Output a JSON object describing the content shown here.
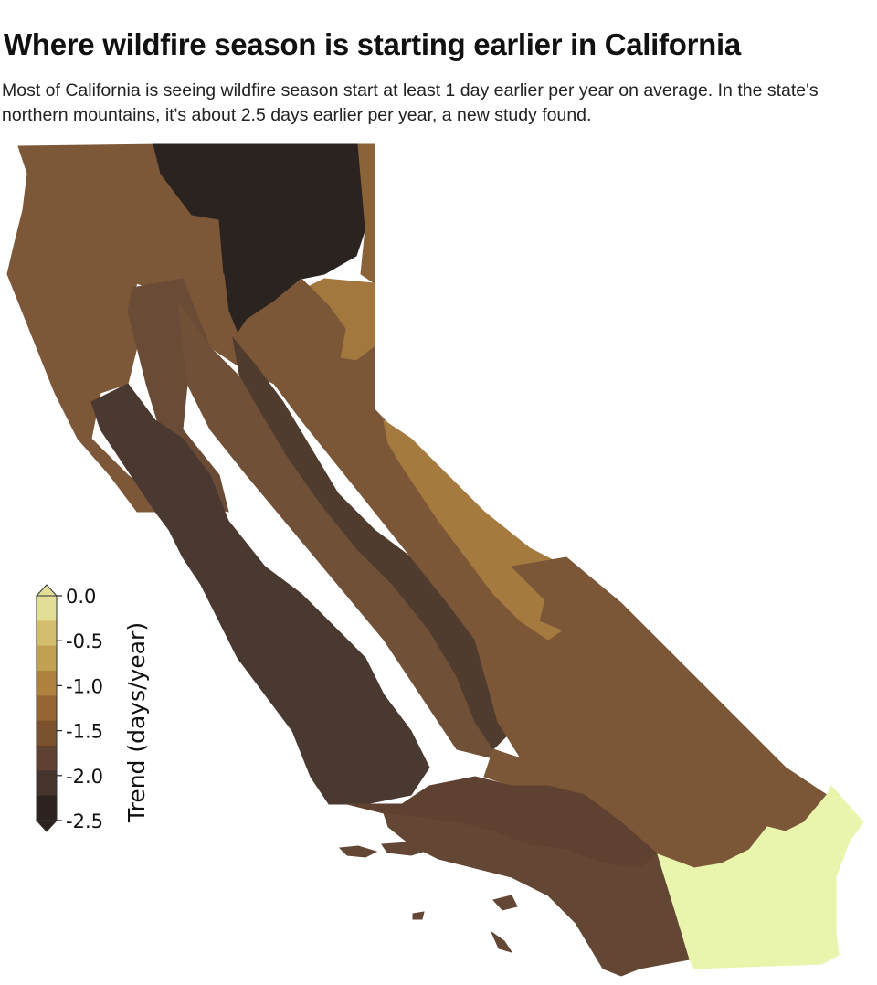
{
  "header": {
    "title": "Where wildfire season is starting earlier in California",
    "subtitle": "Most of California is seeing wildfire season start at least 1 day earlier per year on average. In the state's northern mountains, it's about 2.5 days earlier per year, a new study found."
  },
  "legend": {
    "title": "Trend (days/year)",
    "ticks": [
      "0.0",
      "-0.5",
      "-1.0",
      "-1.5",
      "-2.0",
      "-2.5"
    ],
    "colors": [
      "#e2de98",
      "#d2be6e",
      "#c2a052",
      "#ad823f",
      "#946634",
      "#7a502d",
      "#5e4130",
      "#45342c",
      "#2c231f"
    ],
    "extend": "both",
    "orientation": "vertical",
    "placement": "left"
  },
  "map": {
    "regions": [
      {
        "name": "north-coast",
        "color": "#7d5838"
      },
      {
        "name": "northeast-mountains",
        "color": "#2a2320"
      },
      {
        "name": "modoc-strip",
        "color": "#8a6338"
      },
      {
        "name": "lassen-patch",
        "color": "#a2783e"
      },
      {
        "name": "klamath-inland",
        "color": "#6a4c36"
      },
      {
        "name": "sacramento-valley",
        "color": "#7b5738"
      },
      {
        "name": "sierra-foothills",
        "color": "#705036"
      },
      {
        "name": "sierra-crest",
        "color": "#4f3c2f"
      },
      {
        "name": "sierra-east",
        "color": "#7b5738"
      },
      {
        "name": "owens-patch",
        "color": "#a57a3f"
      },
      {
        "name": "central-coast",
        "color": "#4a3930"
      },
      {
        "name": "mojave",
        "color": "#7b5738"
      },
      {
        "name": "transverse-ranges",
        "color": "#5e4131"
      },
      {
        "name": "south-coast",
        "color": "#634634"
      },
      {
        "name": "southeast-desert",
        "color": "#e9f4ad"
      }
    ]
  }
}
